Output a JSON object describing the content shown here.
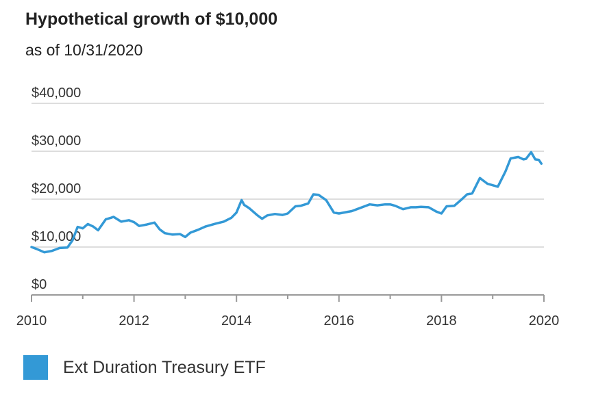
{
  "header": {
    "title": "Hypothetical growth of $10,000",
    "subtitle": "as of 10/31/2020"
  },
  "chart_data": {
    "type": "line",
    "title": "Hypothetical growth of $10,000",
    "subtitle": "as of 10/31/2020",
    "xlabel": "",
    "ylabel": "",
    "xlim": [
      2010,
      2020
    ],
    "ylim": [
      0,
      40000
    ],
    "x_ticks": [
      2010,
      2012,
      2014,
      2016,
      2018,
      2020
    ],
    "x_tick_labels": [
      "2010",
      "2012",
      "2014",
      "2016",
      "2018",
      "2020"
    ],
    "y_ticks": [
      0,
      10000,
      20000,
      30000,
      40000
    ],
    "y_tick_labels": [
      "$0",
      "$10,000",
      "$20,000",
      "$30,000",
      "$40,000"
    ],
    "grid": true,
    "legend": "bottom-left",
    "colors": {
      "series": "#3399d6",
      "grid": "#dddddd",
      "axis": "#999999"
    },
    "series": [
      {
        "name": "Ext Duration Treasury ETF",
        "x": [
          2010.0,
          2010.1,
          2010.25,
          2010.4,
          2010.55,
          2010.7,
          2010.8,
          2010.9,
          2011.0,
          2011.1,
          2011.2,
          2011.3,
          2011.45,
          2011.55,
          2011.6,
          2011.75,
          2011.9,
          2012.0,
          2012.1,
          2012.25,
          2012.4,
          2012.5,
          2012.6,
          2012.75,
          2012.9,
          2013.0,
          2013.1,
          2013.25,
          2013.4,
          2013.5,
          2013.6,
          2013.75,
          2013.9,
          2014.0,
          2014.1,
          2014.15,
          2014.25,
          2014.4,
          2014.5,
          2014.6,
          2014.75,
          2014.9,
          2015.0,
          2015.15,
          2015.25,
          2015.4,
          2015.5,
          2015.6,
          2015.75,
          2015.9,
          2016.0,
          2016.15,
          2016.25,
          2016.4,
          2016.5,
          2016.6,
          2016.75,
          2016.9,
          2017.0,
          2017.1,
          2017.25,
          2017.4,
          2017.5,
          2017.6,
          2017.75,
          2017.9,
          2018.0,
          2018.1,
          2018.25,
          2018.4,
          2018.5,
          2018.6,
          2018.75,
          2018.8,
          2018.9,
          2019.0,
          2019.1,
          2019.25,
          2019.35,
          2019.5,
          2019.6,
          2019.65,
          2019.75,
          2019.83,
          2019.9,
          2019.95
        ],
        "values": [
          10000,
          9600,
          8900,
          9200,
          9800,
          9900,
          11400,
          14200,
          13900,
          14800,
          14300,
          13500,
          15800,
          16100,
          16300,
          15300,
          15600,
          15200,
          14400,
          14700,
          15100,
          13700,
          12900,
          12600,
          12700,
          12100,
          13000,
          13600,
          14300,
          14600,
          14900,
          15300,
          16100,
          17200,
          19800,
          18800,
          18100,
          16700,
          15900,
          16600,
          16900,
          16700,
          17000,
          18500,
          18600,
          19100,
          21000,
          20900,
          19800,
          17200,
          17000,
          17300,
          17500,
          18100,
          18500,
          18900,
          18700,
          18900,
          18900,
          18600,
          17900,
          18300,
          18300,
          18400,
          18300,
          17400,
          17000,
          18500,
          18600,
          20000,
          21000,
          21200,
          24400,
          24000,
          23200,
          22900,
          22600,
          25800,
          28500,
          28800,
          28300,
          28400,
          29800,
          28300,
          28200,
          27400
        ]
      }
    ]
  }
}
